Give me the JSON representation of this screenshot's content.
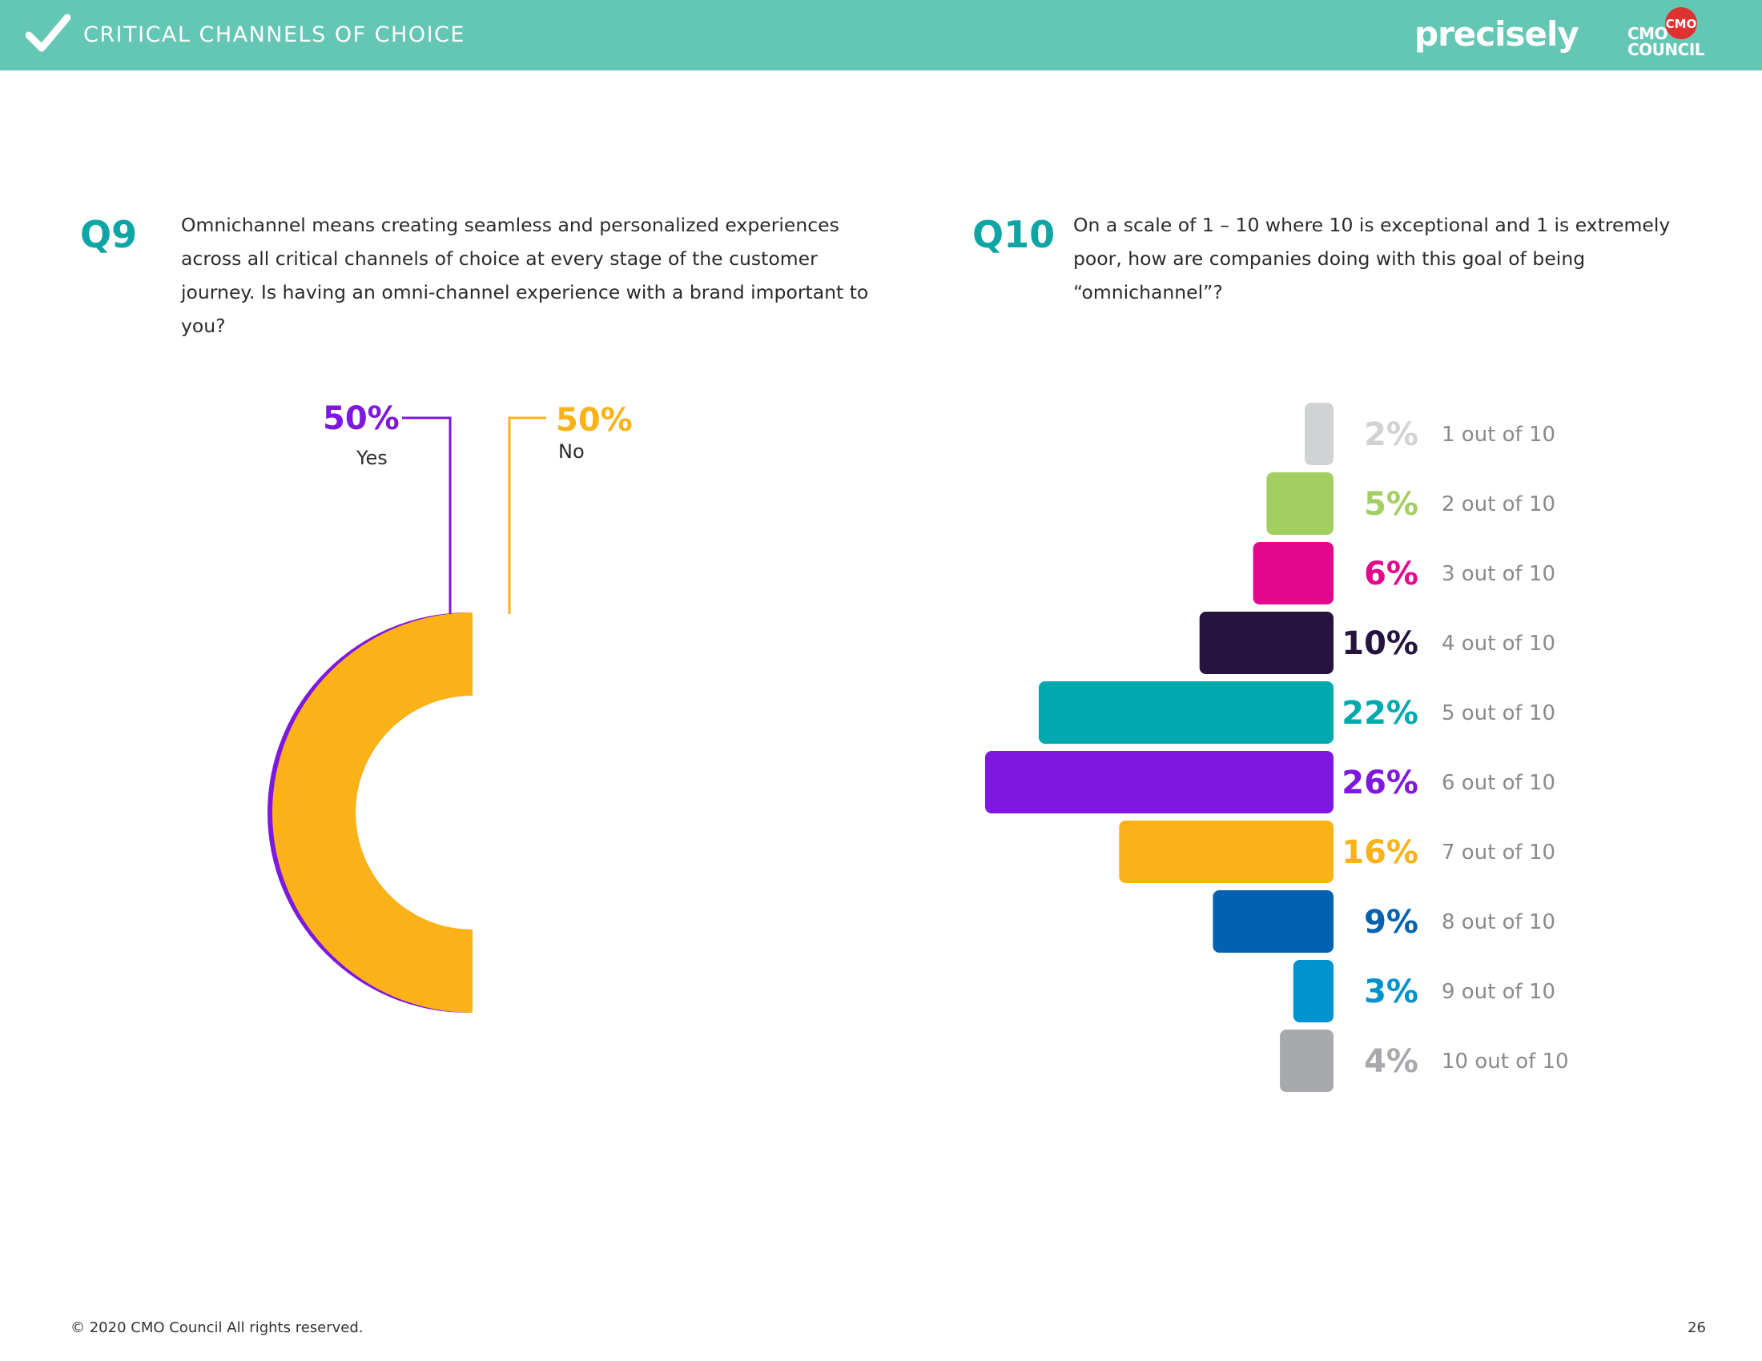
{
  "header": {
    "section_title": "CRITICAL CHANNELS OF CHOICE",
    "brand": "precisely",
    "council_logo_line1": "CMO",
    "council_logo_line2": "COUNCIL",
    "council_logo_badge": "CMO",
    "colors": {
      "bar": "#64c7b3"
    },
    "icons": [
      "checkmark-icon"
    ]
  },
  "q9": {
    "number": "Q9",
    "text": "Omnichannel means creating seamless and personalized experiences across all critical channels of choice at every stage of the customer journey. Is having an omni-channel experience with a brand important to you?"
  },
  "q10": {
    "number": "Q10",
    "text": "On a scale of 1 – 10 where 10 is exceptional and 1 is extremely poor, how are companies doing with this goal of being “omnichannel”?"
  },
  "chart_data": [
    {
      "type": "pie",
      "variant": "donut",
      "slices": [
        {
          "label": "Yes",
          "value": 50,
          "value_label": "50%",
          "color": "#7e17e0"
        },
        {
          "label": "No",
          "value": 50,
          "value_label": "50%",
          "color": "#fbb118"
        }
      ],
      "legend": "leader lines above chart"
    },
    {
      "type": "bar",
      "orientation": "horizontal",
      "categories": [
        "1 out of 10",
        "2 out of 10",
        "3 out of 10",
        "4 out of 10",
        "5 out of 10",
        "6 out of 10",
        "7 out of 10",
        "8 out of 10",
        "9 out of 10",
        "10 out of 10"
      ],
      "values": [
        2,
        5,
        6,
        10,
        22,
        26,
        16,
        9,
        3,
        4
      ],
      "value_labels": [
        "2%",
        "5%",
        "6%",
        "10%",
        "22%",
        "26%",
        "16%",
        "9%",
        "3%",
        "4%"
      ],
      "colors": [
        "#d1d2d4",
        "#a3cf62",
        "#e2078c",
        "#261440",
        "#00a9ad",
        "#7e17e0",
        "#fbb118",
        "#0062b0",
        "#0091cf",
        "#a8a9ad"
      ],
      "unit": "%",
      "grid": false
    }
  ],
  "footer": {
    "copyright": "© 2020 CMO Council  All rights reserved.",
    "page_number": "26"
  }
}
